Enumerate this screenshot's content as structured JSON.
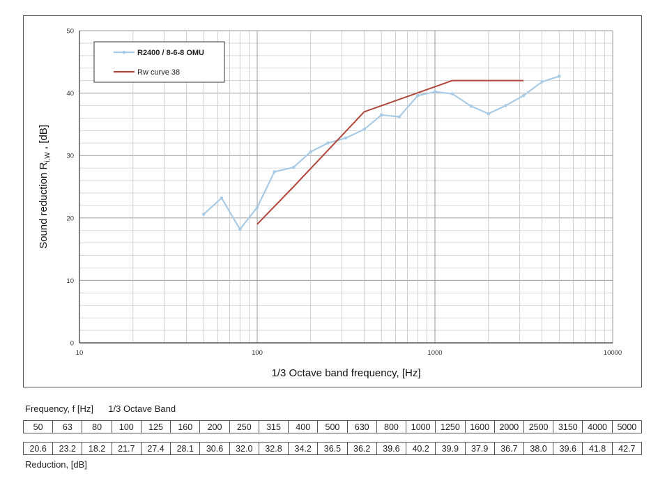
{
  "chart_data": {
    "type": "line",
    "xlabel": "1/3 Octave band frequency, [Hz]",
    "ylabel_parts": [
      "Sound reduction R",
      "i,W",
      " , [dB]"
    ],
    "x_scale": "log",
    "xlim": [
      10,
      10000
    ],
    "ylim": [
      0,
      50
    ],
    "x_ticks": [
      10,
      100,
      1000,
      10000
    ],
    "x_tick_labels": [
      "10",
      "100",
      "1000",
      "10000"
    ],
    "y_ticks": [
      0,
      10,
      20,
      30,
      40,
      50
    ],
    "y_tick_labels": [
      "0",
      "10",
      "20",
      "30",
      "40",
      "50"
    ],
    "grid": true,
    "legend_position": "top-left",
    "series": [
      {
        "name": "R2400 / 8-6-8 OMU",
        "color": "#a9cbe6",
        "marker": "dot",
        "x": [
          50,
          63,
          80,
          100,
          125,
          160,
          200,
          250,
          315,
          400,
          500,
          630,
          800,
          1000,
          1250,
          1600,
          2000,
          2500,
          3150,
          4000,
          5000
        ],
        "y": [
          20.6,
          23.2,
          18.2,
          21.7,
          27.4,
          28.1,
          30.6,
          32.0,
          32.8,
          34.2,
          36.5,
          36.2,
          39.6,
          40.2,
          39.9,
          37.9,
          36.7,
          38.0,
          39.6,
          41.8,
          42.7
        ]
      },
      {
        "name": "Rw curve 38",
        "color": "#b0463a",
        "marker": "none",
        "x": [
          100,
          160,
          400,
          1250,
          3150
        ],
        "y": [
          19,
          25,
          37,
          42,
          42
        ]
      }
    ]
  },
  "table": {
    "frequency_label": "Frequency, f [Hz]",
    "band_label": "1/3 Octave Band",
    "reduction_label": "Reduction, [dB]",
    "frequencies": [
      "50",
      "63",
      "80",
      "100",
      "125",
      "160",
      "200",
      "250",
      "315",
      "400",
      "500",
      "630",
      "800",
      "1000",
      "1250",
      "1600",
      "2000",
      "2500",
      "3150",
      "4000",
      "5000"
    ],
    "reductions": [
      "20.6",
      "23.2",
      "18.2",
      "21.7",
      "27.4",
      "28.1",
      "30.6",
      "32.0",
      "32.8",
      "34.2",
      "36.5",
      "36.2",
      "39.6",
      "40.2",
      "39.9",
      "37.9",
      "36.7",
      "38.0",
      "39.6",
      "41.8",
      "42.7"
    ]
  }
}
